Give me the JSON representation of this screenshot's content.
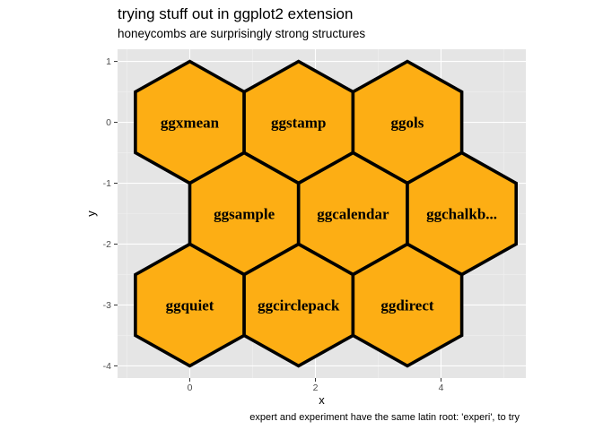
{
  "chart_data": {
    "type": "scatter",
    "title": "trying stuff out in ggplot2 extension",
    "subtitle": "honeycombs are surprisingly strong structures",
    "caption": "expert and experiment have the same latin root: 'experi', to try",
    "xlabel": "x",
    "ylabel": "y",
    "xlim": [
      -1.15,
      5.35
    ],
    "ylim": [
      -4.2,
      1.2
    ],
    "xticks": [
      0,
      2,
      4
    ],
    "yticks": [
      1,
      0,
      -1,
      -2,
      -3,
      -4
    ],
    "grid": true,
    "legend": "none",
    "hex_radius": 1,
    "colors": {
      "panel": "#e5e5e5",
      "grid_major": "#ffffff",
      "grid_minor": "#f0f0f0",
      "hex_fill": "#fdae14",
      "hex_stroke": "#000000"
    },
    "points": [
      {
        "x": 0,
        "y": 0,
        "label": "ggxmean"
      },
      {
        "x": 1.732,
        "y": 0,
        "label": "ggstamp"
      },
      {
        "x": 3.464,
        "y": 0,
        "label": "ggols"
      },
      {
        "x": 0.866,
        "y": -1.5,
        "label": "ggsample"
      },
      {
        "x": 2.598,
        "y": -1.5,
        "label": "ggcalendar"
      },
      {
        "x": 4.33,
        "y": -1.5,
        "label": "ggchalkb..."
      },
      {
        "x": 0,
        "y": -3,
        "label": "ggquiet"
      },
      {
        "x": 1.732,
        "y": -3,
        "label": "ggcirclepack"
      },
      {
        "x": 3.464,
        "y": -3,
        "label": "ggdirect"
      }
    ]
  }
}
